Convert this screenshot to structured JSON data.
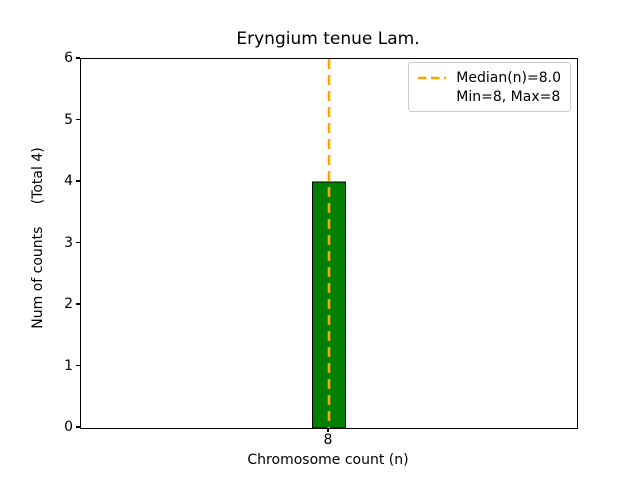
{
  "chart_data": {
    "type": "bar",
    "title": "Eryngium tenue Lam.",
    "xlabel": "Chromosome count (n)",
    "ylabel": "Num of counts     (Total 4)",
    "categories": [
      "8"
    ],
    "values": [
      4
    ],
    "total_counts": 4,
    "ylim": [
      0,
      6
    ],
    "yticks": [
      0,
      1,
      2,
      3,
      4,
      5,
      6
    ],
    "median_n": 8.0,
    "min_n": 8,
    "max_n": 8,
    "grid": false,
    "legend": {
      "position": "upper-right",
      "entries": [
        {
          "label": "Median(n)=8.0",
          "symbol": "orange-dashed-line"
        },
        {
          "label": "Min=8, Max=8",
          "symbol": "none"
        }
      ]
    },
    "colors": {
      "bar_fill": "#008000",
      "bar_edge": "#000000",
      "median_line": "#FFA500",
      "axis": "#000000",
      "legend_border": "#cccccc",
      "background": "#ffffff"
    }
  }
}
